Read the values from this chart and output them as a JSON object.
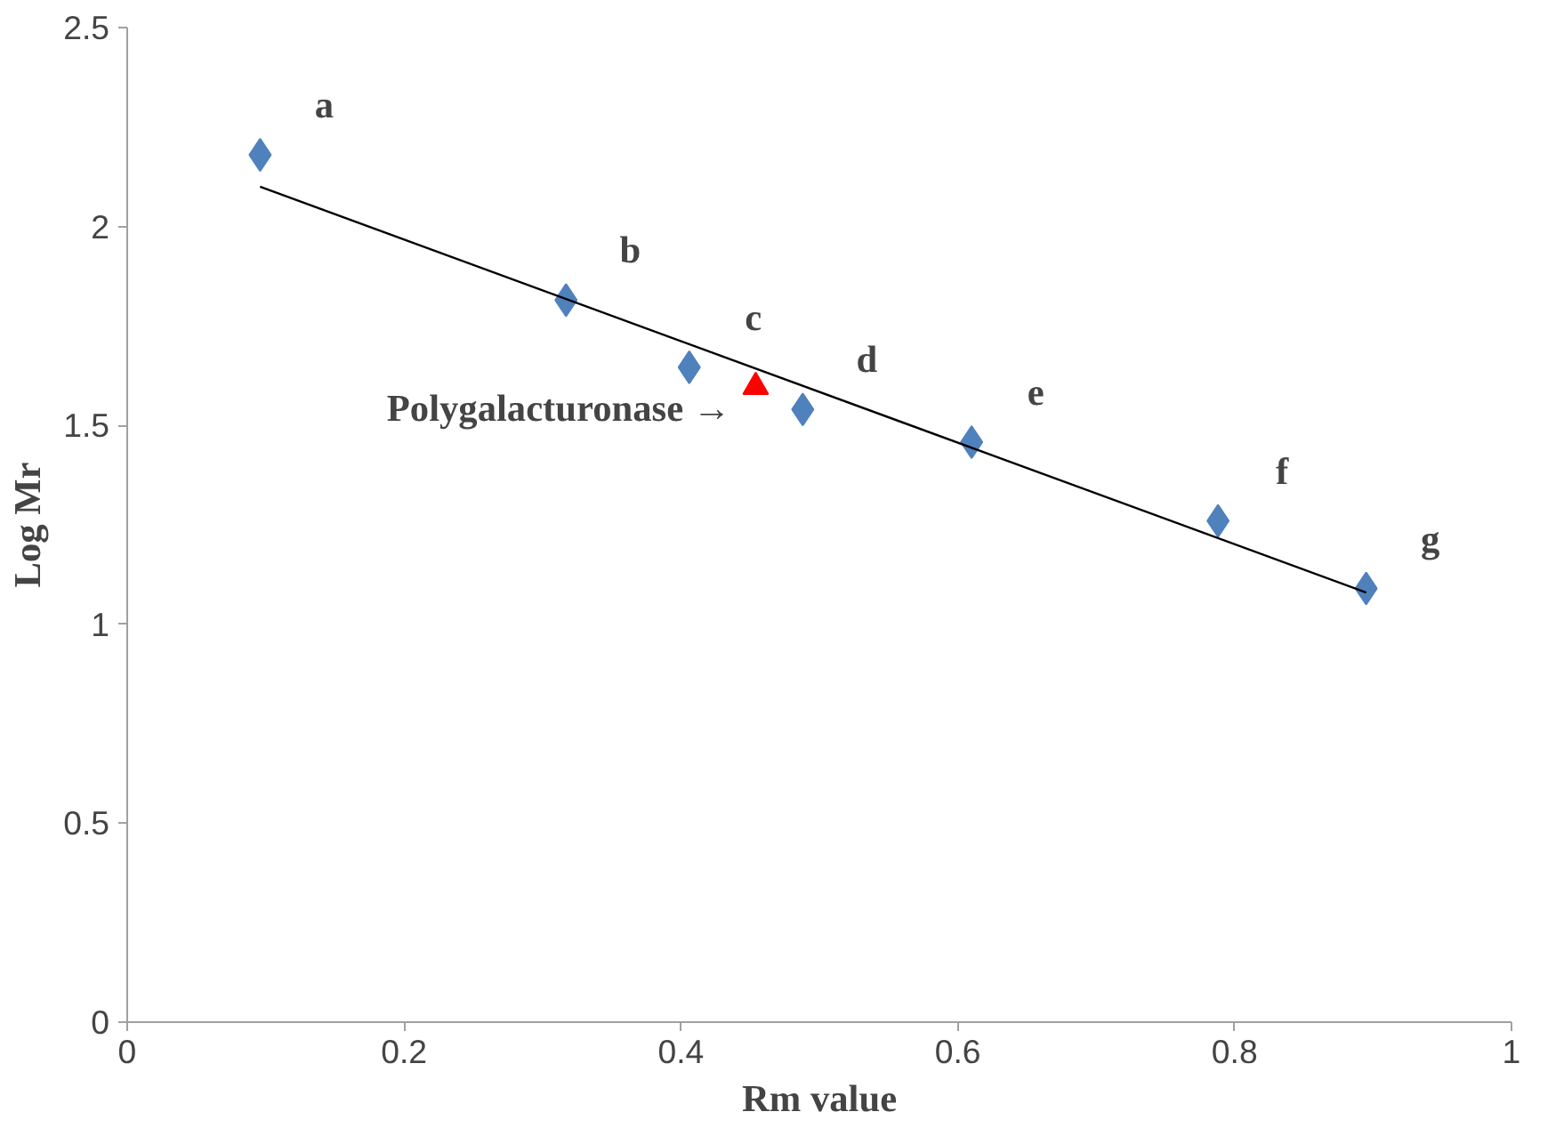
{
  "chart_data": {
    "type": "scatter",
    "xlabel": "Rm value",
    "ylabel": "Log Mr",
    "xlim": [
      0,
      1
    ],
    "xticks": [
      0,
      0.2,
      0.4,
      0.6,
      0.8,
      1
    ],
    "ylim": [
      0,
      2.5
    ],
    "yticks": [
      0,
      0.5,
      1,
      1.5,
      2,
      2.5
    ],
    "grid": false,
    "series": [
      {
        "type": "line",
        "color": "#000000",
        "x": [
          0.096,
          0.895
        ],
        "values": [
          2.1,
          1.08
        ]
      },
      {
        "color": "#4f81bd",
        "marker": "diamond",
        "x": [
          0.096,
          0.317,
          0.406,
          0.488,
          0.61,
          0.788,
          0.895
        ],
        "values": [
          2.18,
          1.815,
          1.646,
          1.54,
          1.458,
          1.26,
          1.09
        ]
      },
      {
        "color": "#ff0000",
        "marker": "triangle",
        "x": [
          0.454
        ],
        "values": [
          1.597
        ]
      }
    ],
    "annotations": [
      {
        "text": "a",
        "x": 0.096,
        "y": 2.18
      },
      {
        "text": "b",
        "x": 0.317,
        "y": 1.815
      },
      {
        "text": "c",
        "x": 0.406,
        "y": 1.646
      },
      {
        "text": "d",
        "x": 0.488,
        "y": 1.54
      },
      {
        "text": "e",
        "x": 0.61,
        "y": 1.458
      },
      {
        "text": "f",
        "x": 0.788,
        "y": 1.26
      },
      {
        "text": "g",
        "x": 0.895,
        "y": 1.09
      },
      {
        "text": "Polygalacturonase →",
        "x": 0.454,
        "y": 1.597
      }
    ]
  }
}
